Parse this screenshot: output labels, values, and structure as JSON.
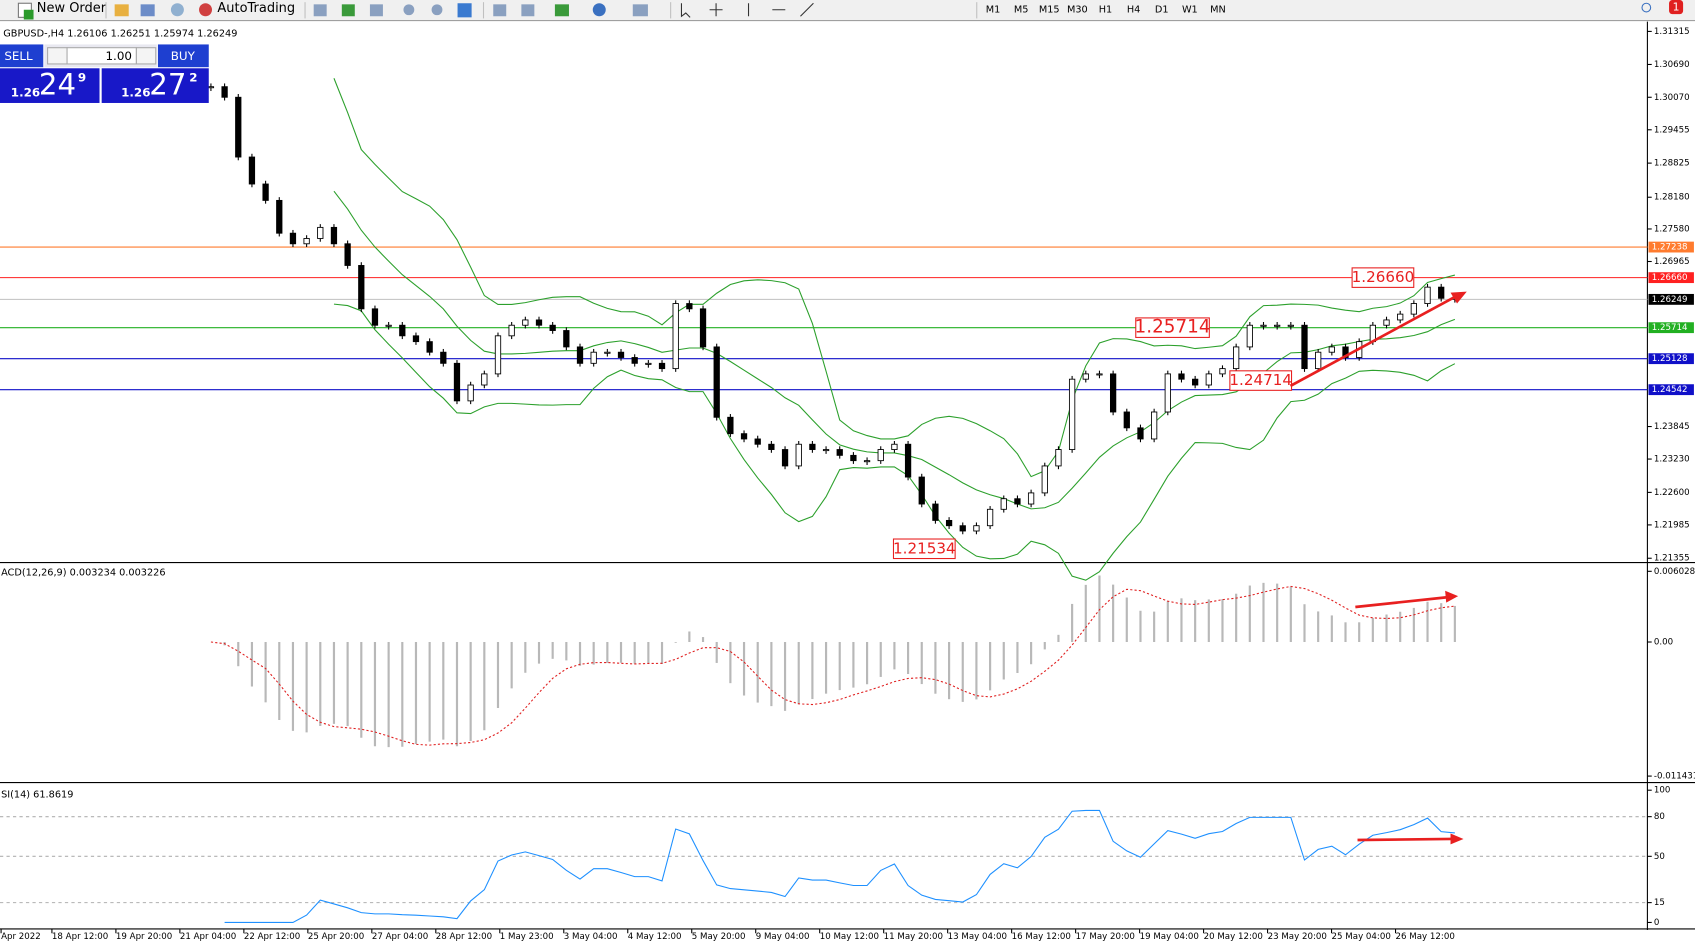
{
  "toolbar": {
    "new_order": "New Order",
    "autotrading": "AutoTrading",
    "timeframes": [
      "M1",
      "M5",
      "M15",
      "M30",
      "H1",
      "H4",
      "D1",
      "W1",
      "MN"
    ],
    "notifications": "1"
  },
  "trade_panel": {
    "sell": "SELL",
    "buy": "BUY",
    "volume": "1.00",
    "bid_big": "1.26",
    "bid_pips": "24",
    "bid_point": "9",
    "ask_big": "1.26",
    "ask_pips": "27",
    "ask_point": "2"
  },
  "chart": {
    "symbol_info": "GBPUSD-,H4  1.26106 1.26251 1.25974 1.26249",
    "ylim": [
      1.21294,
      1.31458
    ],
    "yticks": [
      1.31315,
      {
        "value": 1.3069,
        "label": "1.30690"
      },
      {
        "value": 1.3007,
        "label": "1.30070"
      },
      1.29455,
      1.28825,
      {
        "value": 1.2818,
        "label": "1.28180"
      },
      {
        "value": 1.2758,
        "label": "1.27580"
      },
      1.26965,
      1.23845,
      {
        "value": 1.2323,
        "label": "1.23230"
      },
      {
        "value": 1.226,
        "label": "1.22600"
      },
      1.21985,
      1.21355
    ],
    "current_price": 1.26249,
    "levels": [
      {
        "value": 1.27238,
        "color": "#ff7b2e"
      },
      {
        "value": 1.2666,
        "label": "1.26660",
        "color": "#ff2020"
      },
      {
        "value": 1.25714,
        "color": "#22b022"
      },
      {
        "value": 1.25128,
        "color": "#1010c8"
      },
      {
        "value": 1.24542,
        "color": "#1010c8"
      }
    ],
    "annotations": [
      {
        "value": 1.2666,
        "label": "1.26660"
      },
      1.25714,
      1.24714,
      1.21534
    ],
    "closes": [
      1.3027,
      1.3007,
      1.2894,
      1.2843,
      1.2812,
      1.275,
      1.273,
      1.274,
      1.2761,
      1.273,
      1.2689,
      1.2607,
      1.2576,
      1.2576,
      1.2556,
      1.2545,
      1.2525,
      1.2504,
      1.2433,
      1.2463,
      1.2484,
      1.2556,
      1.2576,
      1.2586,
      1.2576,
      1.2566,
      1.2535,
      1.2504,
      1.2525,
      1.2525,
      1.2515,
      1.2504,
      1.2504,
      1.2494,
      1.2617,
      1.2607,
      1.2535,
      1.2402,
      1.2371,
      1.2361,
      1.2351,
      1.2341,
      1.231,
      1.2351,
      1.2341,
      1.2341,
      1.233,
      1.232,
      1.232,
      1.2341,
      1.2351,
      1.2289,
      1.2238,
      1.2207,
      1.2197,
      1.2187,
      1.2197,
      1.2228,
      1.2248,
      1.2238,
      1.2259,
      1.231,
      1.2341,
      1.2474,
      1.2484,
      1.2484,
      1.2412,
      1.2382,
      1.2361,
      1.2412,
      1.2484,
      1.2474,
      1.2463,
      1.2484,
      1.2494,
      1.2535,
      1.2576,
      1.2576,
      1.2576,
      1.2576,
      1.2494,
      1.2525,
      1.2535,
      1.2515,
      1.2545,
      1.2576,
      1.2586,
      1.2597,
      1.2617,
      1.2648,
      1.2627,
      1.2625
    ]
  },
  "macd": {
    "label": "ACD(12,26,9) 0.003234 0.003226",
    "ylim": [
      0.00659,
      -0.0118
    ],
    "yticks": [
      0.006028,
      {
        "value": 0,
        "label": "0.00"
      },
      -0.011431
    ]
  },
  "rsi": {
    "label": "SI(14) 61.8619",
    "ylim": [
      103.3,
      -5.7
    ],
    "yticks": [
      100,
      80,
      50,
      15,
      0
    ],
    "levels": [
      80,
      50,
      15
    ]
  },
  "time_labels": [
    "Apr 2022",
    "18 Apr 12:00",
    "19 Apr 20:00",
    "21 Apr 04:00",
    "22 Apr 12:00",
    "25 Apr 20:00",
    "27 Apr 04:00",
    "28 Apr 12:00",
    "1 May 23:00",
    "3 May 04:00",
    "4 May 12:00",
    "5 May 20:00",
    "9 May 04:00",
    "10 May 12:00",
    "11 May 20:00",
    "13 May 04:00",
    "16 May 12:00",
    "17 May 20:00",
    "19 May 04:00",
    "20 May 12:00",
    "23 May 20:00",
    "25 May 04:00",
    "26 May 12:00"
  ]
}
